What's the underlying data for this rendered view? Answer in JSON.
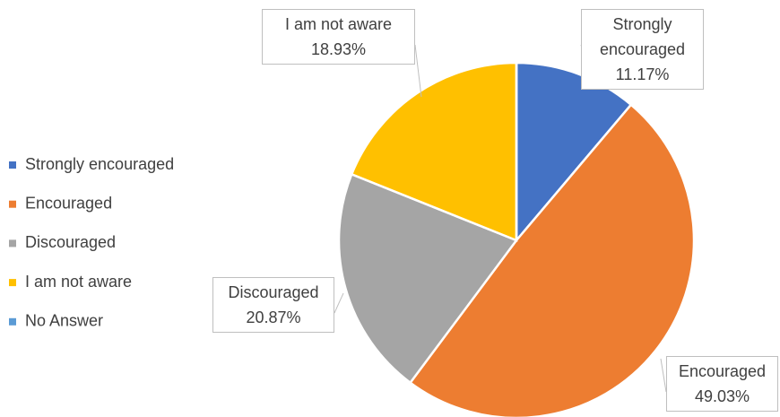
{
  "chart_data": {
    "type": "pie",
    "categories": [
      "Strongly encouraged",
      "Encouraged",
      "Discouraged",
      "I am not aware",
      "No Answer"
    ],
    "values": [
      11.17,
      49.03,
      20.87,
      18.93,
      0
    ],
    "value_labels": [
      "11.17%",
      "49.03%",
      "20.87%",
      "18.93%",
      null
    ],
    "colors": [
      "#4472c4",
      "#ed7d31",
      "#a5a5a5",
      "#ffc000",
      "#5b9bd5"
    ],
    "legend": "left"
  }
}
